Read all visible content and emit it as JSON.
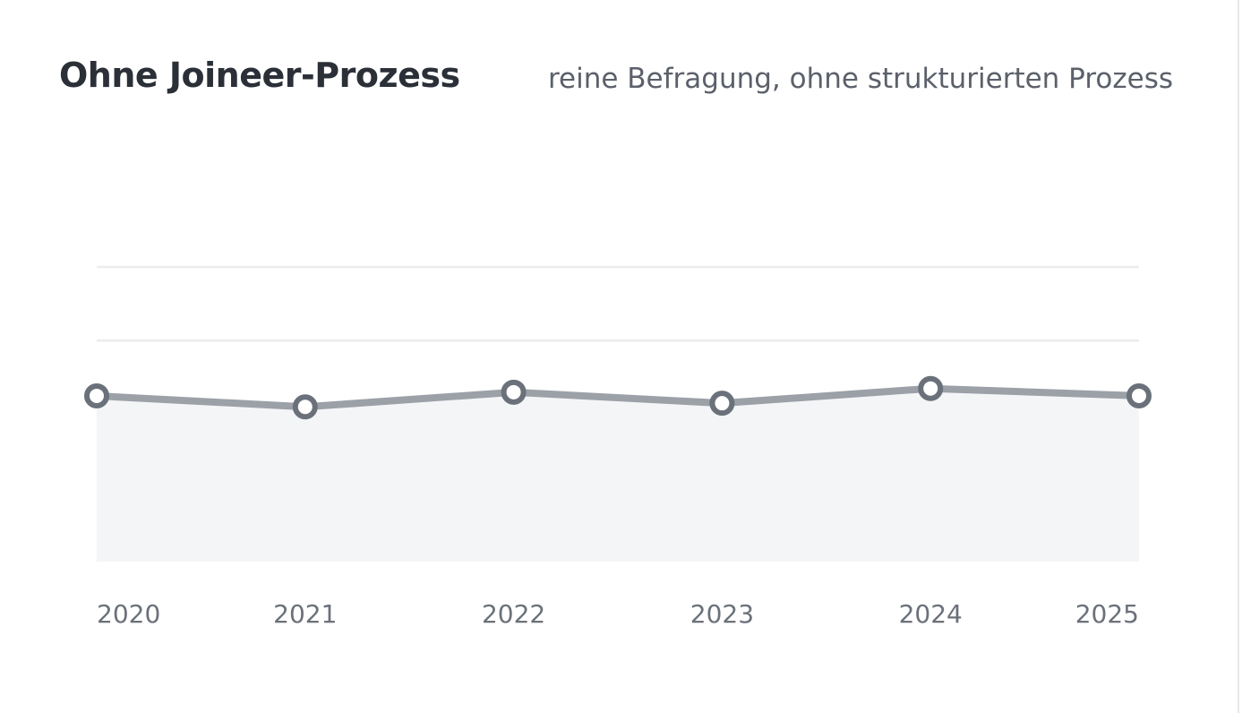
{
  "header": {
    "title": "Ohne Joineer-Prozess",
    "subtitle": "reine Befragung, ohne strukturierten Prozess"
  },
  "colors": {
    "line": "#9ca1a8",
    "marker_stroke": "#6b717a",
    "marker_fill": "#ffffff",
    "area_fill": "#f4f5f7",
    "grid": "#ebecee",
    "tick_text": "#6b717a"
  },
  "chart_data": {
    "type": "area",
    "categories": [
      "2020",
      "2021",
      "2022",
      "2023",
      "2024",
      "2025"
    ],
    "values": [
      2.25,
      2.1,
      2.3,
      2.15,
      2.35,
      2.25
    ],
    "ylim": [
      0,
      4
    ],
    "grid": true,
    "legend": "none",
    "title": "Ohne Joineer-Prozess",
    "subtitle": "reine Befragung, ohne strukturierten Prozess",
    "xlabel": "",
    "ylabel": ""
  }
}
